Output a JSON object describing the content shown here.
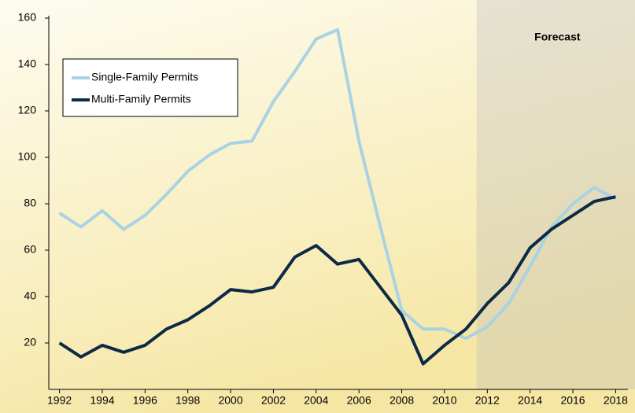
{
  "chart_data": {
    "type": "line",
    "x": [
      1992,
      1993,
      1994,
      1995,
      1996,
      1997,
      1998,
      1999,
      2000,
      2001,
      2002,
      2003,
      2004,
      2005,
      2006,
      2007,
      2008,
      2009,
      2010,
      2011,
      2012,
      2013,
      2014,
      2015,
      2016,
      2017,
      2018
    ],
    "series": [
      {
        "name": "Single-Family Permits",
        "color": "#a9d3e3",
        "values": [
          76,
          70,
          77,
          69,
          75,
          84,
          94,
          101,
          106,
          107,
          124,
          137,
          151,
          155,
          107,
          70,
          34,
          26,
          26,
          22,
          27,
          37,
          53,
          70,
          80,
          87,
          82
        ]
      },
      {
        "name": "Multi-Family Permits",
        "color": "#0d2a45",
        "values": [
          20,
          14,
          19,
          16,
          19,
          26,
          30,
          36,
          43,
          42,
          44,
          57,
          62,
          54,
          56,
          44,
          32,
          11,
          19,
          26,
          37,
          46,
          61,
          69,
          75,
          81,
          83
        ]
      }
    ],
    "xlim": [
      1991.5,
      2018.5
    ],
    "xticks": [
      1992,
      1994,
      1996,
      1998,
      2000,
      2002,
      2004,
      2006,
      2008,
      2010,
      2012,
      2014,
      2016,
      2018
    ],
    "ylim": [
      0,
      160
    ],
    "yticks": [
      20,
      40,
      60,
      80,
      100,
      120,
      140,
      160
    ],
    "grid": false,
    "legend": "upper left",
    "forecast_start": 2011.5,
    "forecast_label": "Forecast"
  }
}
